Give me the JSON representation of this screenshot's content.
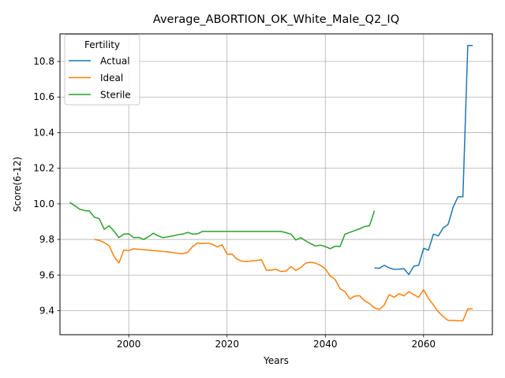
{
  "chart_data": {
    "type": "line",
    "title": "Average_ABORTION_OK_White_Male_Q2_IQ",
    "xlabel": "Years",
    "ylabel": "Score(6-12)",
    "xlim": [
      1986,
      2074
    ],
    "ylim": [
      9.265,
      10.955
    ],
    "xticks": [
      2000,
      2020,
      2040,
      2060
    ],
    "yticks": [
      9.4,
      9.6,
      9.8,
      10.0,
      10.2,
      10.4,
      10.6,
      10.8
    ],
    "ytick_labels": [
      "9.4",
      "9.6",
      "9.8",
      "10.0",
      "10.2",
      "10.4",
      "10.6",
      "10.8"
    ],
    "grid": true,
    "legend": {
      "title": "Fertility",
      "placement": "top-left"
    },
    "series": [
      {
        "name": "Actual",
        "color": "#1f77b4",
        "x": [
          2050,
          2051,
          2052,
          2053,
          2054,
          2055,
          2056,
          2057,
          2058,
          2059,
          2060,
          2061,
          2062,
          2063,
          2064,
          2065,
          2066,
          2067,
          2068,
          2069,
          2070
        ],
        "y": [
          9.64,
          9.638,
          9.655,
          9.64,
          9.632,
          9.633,
          9.636,
          9.603,
          9.65,
          9.655,
          9.75,
          9.74,
          9.83,
          9.82,
          9.865,
          9.885,
          9.98,
          10.04,
          10.04,
          10.89,
          10.89
        ]
      },
      {
        "name": "Ideal",
        "color": "#ff7f0e",
        "x": [
          1993,
          1994,
          1995,
          1996,
          1997,
          1998,
          1999,
          2000,
          2001,
          2002,
          2003,
          2004,
          2005,
          2006,
          2007,
          2008,
          2009,
          2010,
          2011,
          2012,
          2013,
          2014,
          2015,
          2016,
          2017,
          2018,
          2019,
          2020,
          2021,
          2022,
          2023,
          2024,
          2025,
          2026,
          2027,
          2028,
          2029,
          2030,
          2031,
          2032,
          2033,
          2034,
          2035,
          2036,
          2037,
          2038,
          2039,
          2040,
          2041,
          2042,
          2043,
          2044,
          2045,
          2046,
          2047,
          2048,
          2049,
          2050,
          2051,
          2052,
          2053,
          2054,
          2055,
          2056,
          2057,
          2058,
          2059,
          2060,
          2061,
          2062,
          2063,
          2064,
          2065,
          2066,
          2067,
          2068,
          2069,
          2070
        ],
        "y": [
          9.8,
          9.795,
          9.782,
          9.765,
          9.705,
          9.668,
          9.74,
          9.737,
          9.748,
          9.745,
          9.743,
          9.74,
          9.738,
          9.735,
          9.732,
          9.73,
          9.727,
          9.722,
          9.72,
          9.728,
          9.76,
          9.78,
          9.777,
          9.779,
          9.773,
          9.758,
          9.77,
          9.717,
          9.718,
          9.69,
          9.678,
          9.676,
          9.68,
          9.682,
          9.686,
          9.628,
          9.628,
          9.632,
          9.62,
          9.622,
          9.648,
          9.627,
          9.642,
          9.667,
          9.672,
          9.667,
          9.655,
          9.635,
          9.595,
          9.575,
          9.523,
          9.507,
          9.465,
          9.482,
          9.484,
          9.455,
          9.44,
          9.415,
          9.407,
          9.432,
          9.49,
          9.475,
          9.495,
          9.483,
          9.507,
          9.49,
          9.475,
          9.518,
          9.468,
          9.432,
          9.393,
          9.367,
          9.345,
          9.345,
          9.343,
          9.343,
          9.41,
          9.41
        ]
      },
      {
        "name": "Sterile",
        "color": "#2ca02c",
        "x": [
          1988,
          1989,
          1990,
          1991,
          1992,
          1993,
          1994,
          1995,
          1996,
          1997,
          1998,
          1999,
          2000,
          2001,
          2002,
          2003,
          2004,
          2005,
          2006,
          2007,
          2008,
          2009,
          2010,
          2011,
          2012,
          2013,
          2014,
          2015,
          2016,
          2017,
          2018,
          2019,
          2020,
          2021,
          2022,
          2023,
          2024,
          2025,
          2026,
          2027,
          2028,
          2029,
          2030,
          2031,
          2032,
          2033,
          2034,
          2035,
          2036,
          2037,
          2038,
          2039,
          2040,
          2041,
          2042,
          2043,
          2044,
          2045,
          2046,
          2047,
          2048,
          2049,
          2050
        ],
        "y": [
          10.008,
          9.99,
          9.97,
          9.962,
          9.96,
          9.925,
          9.917,
          9.857,
          9.877,
          9.847,
          9.81,
          9.83,
          9.832,
          9.81,
          9.812,
          9.8,
          9.815,
          9.835,
          9.82,
          9.81,
          9.815,
          9.82,
          9.827,
          9.83,
          9.84,
          9.83,
          9.832,
          9.845,
          9.845,
          9.845,
          9.845,
          9.845,
          9.845,
          9.845,
          9.845,
          9.845,
          9.845,
          9.845,
          9.845,
          9.845,
          9.845,
          9.845,
          9.845,
          9.845,
          9.838,
          9.83,
          9.797,
          9.81,
          9.792,
          9.777,
          9.763,
          9.768,
          9.76,
          9.748,
          9.762,
          9.76,
          9.83,
          9.84,
          9.85,
          9.86,
          9.873,
          9.877,
          9.962
        ]
      }
    ]
  }
}
